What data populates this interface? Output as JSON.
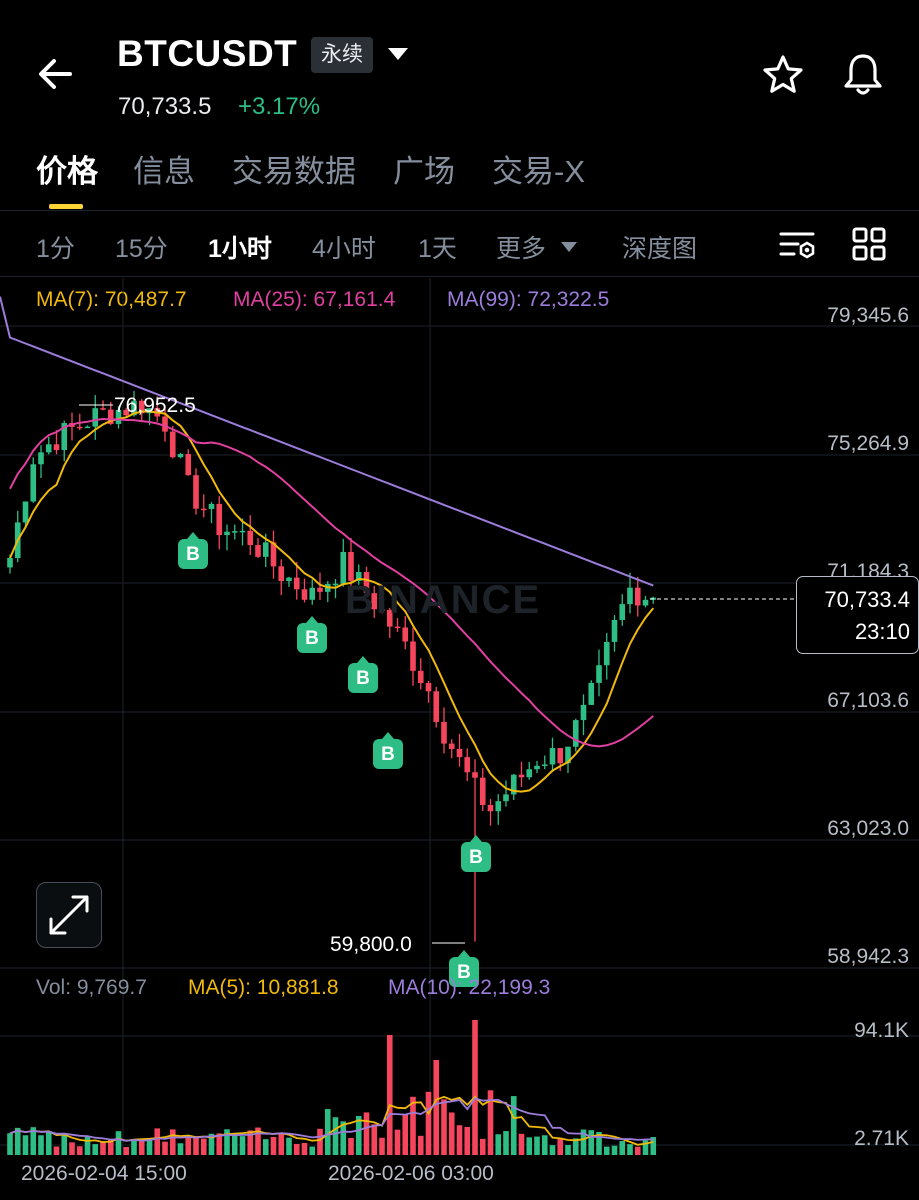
{
  "header": {
    "symbol": "BTCUSDT",
    "badge": "永续",
    "price": "70,733.5",
    "change": "+3.17%"
  },
  "tabs": [
    "价格",
    "信息",
    "交易数据",
    "广场",
    "交易-X"
  ],
  "intervals": [
    "1分",
    "15分",
    "1小时",
    "4小时",
    "1天",
    "更多",
    "深度图"
  ],
  "ma": {
    "ma7": "MA(7): 70,487.7",
    "ma25": "MA(25): 67,161.4",
    "ma99": "MA(99): 72,322.5"
  },
  "colors": {
    "up": "#2ebd85",
    "down": "#f6465d",
    "ma7": "#f0b90b",
    "ma25": "#e040a0",
    "ma99": "#9c7ddb",
    "accent": "#fcd535"
  },
  "price_axis": [
    "79,345.6",
    "75,264.9",
    "71,184.3",
    "67,103.6",
    "63,023.0",
    "58,942.3"
  ],
  "current_tag": {
    "price": "70,733.4",
    "countdown": "23:10"
  },
  "high_label": "76,952.5",
  "low_label": "59,800.0",
  "buy_label": "B",
  "watermark": "BINANCE",
  "volume": {
    "vol": "Vol: 9,769.7",
    "ma5": "MA(5): 10,881.8",
    "ma10": "MA(10): 22,199.3",
    "axis_top": "94.1K",
    "axis_bottom": "2.71K"
  },
  "time_axis": [
    "2026-02-04 15:00",
    "2026-02-06 03:00"
  ],
  "icons": {
    "back": "back-arrow-icon",
    "star": "star-icon",
    "bell": "bell-icon",
    "settings": "chart-settings-icon",
    "layout": "grid-layout-icon",
    "expand": "expand-icon"
  }
}
